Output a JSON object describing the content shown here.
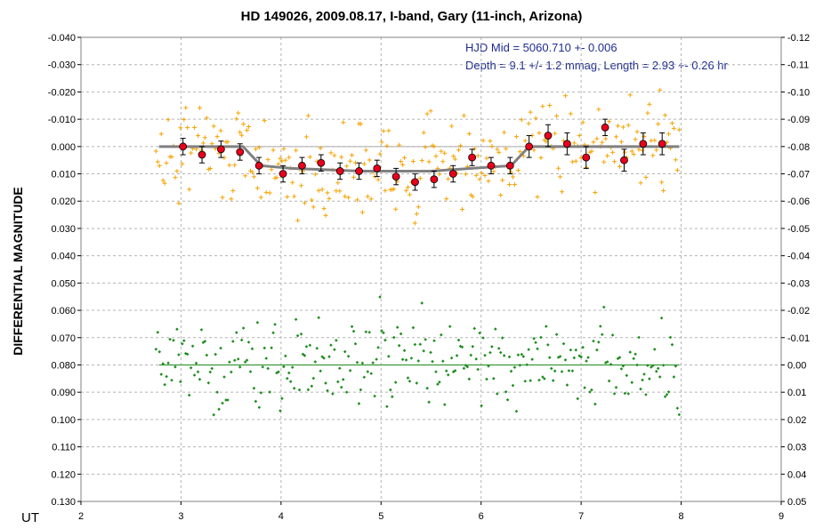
{
  "chart_data": {
    "type": "scatter",
    "title": "HD 149026, 2009.08.17, I-band, Gary (11-inch, Arizona)",
    "xlabel": "UT",
    "ylabel": "DIFFERENTIAL MAGNITUDE",
    "xlim": [
      2,
      9
    ],
    "ylim_left": [
      -0.04,
      0.13
    ],
    "ylim_right": [
      -0.12,
      0.05
    ],
    "y_inverted": true,
    "grid": true,
    "x_ticks": [
      "2",
      "3",
      "4",
      "5",
      "6",
      "7",
      "8",
      "9"
    ],
    "y_ticks_left": [
      "-0.040",
      "-0.030",
      "-0.020",
      "-0.010",
      "0.000",
      "0.010",
      "0.020",
      "0.030",
      "0.040",
      "0.050",
      "0.060",
      "0.070",
      "0.080",
      "0.090",
      "0.100",
      "0.110",
      "0.120",
      "0.130"
    ],
    "y_ticks_right": [
      "-0.12",
      "-0.11",
      "-0.10",
      "-0.09",
      "-0.08",
      "-0.07",
      "-0.06",
      "-0.05",
      "-0.04",
      "-0.03",
      "-0.02",
      "-0.01",
      "0.00",
      "0.01",
      "0.02",
      "0.03",
      "0.04",
      "0.05"
    ],
    "annotations": [
      "HJD Mid = 5060.710 +- 0.006",
      "Depth = 9.1 +/- 1.2 mmag, Length = 2.93 +- 0.26 hr"
    ],
    "colors": {
      "raw": "#f5a300",
      "binned_fill": "#e8001c",
      "model": "#808080",
      "residual": "#1e8c1e",
      "reference": "#aaaaaa",
      "annotation": "#1f2d8f"
    },
    "series": [
      {
        "type": "binned_with_errorbars",
        "x": [
          3.02,
          3.21,
          3.4,
          3.59,
          3.78,
          4.02,
          4.21,
          4.4,
          4.59,
          4.78,
          4.96,
          5.15,
          5.34,
          5.53,
          5.72,
          5.91,
          6.1,
          6.29,
          6.48,
          6.67,
          6.86,
          7.05,
          7.24,
          7.43,
          7.62,
          7.81
        ],
        "y": [
          0.0,
          0.003,
          0.001,
          0.002,
          0.007,
          0.01,
          0.007,
          0.006,
          0.009,
          0.009,
          0.008,
          0.011,
          0.013,
          0.012,
          0.01,
          0.004,
          0.007,
          0.007,
          0.0,
          -0.004,
          -0.001,
          0.004,
          -0.007,
          0.005,
          -0.001,
          -0.001
        ],
        "err": [
          0.003,
          0.003,
          0.003,
          0.003,
          0.003,
          0.003,
          0.003,
          0.003,
          0.003,
          0.003,
          0.003,
          0.003,
          0.003,
          0.003,
          0.003,
          0.003,
          0.003,
          0.003,
          0.004,
          0.004,
          0.004,
          0.004,
          0.003,
          0.004,
          0.004,
          0.004
        ]
      },
      {
        "type": "model_line",
        "x": [
          2.78,
          3.62,
          3.8,
          4.1,
          4.8,
          5.5,
          6.3,
          6.48,
          7.98
        ],
        "y": [
          0.0,
          0.0,
          0.007,
          0.008,
          0.009,
          0.009,
          0.007,
          0.0,
          0.0
        ]
      },
      {
        "type": "reference_line",
        "x": [
          2.78,
          7.98
        ],
        "y": [
          0.0,
          0.0
        ]
      },
      {
        "type": "residual_reference_line",
        "axis": "right",
        "x": [
          2.78,
          7.98
        ],
        "y": [
          0.0,
          0.0
        ]
      }
    ],
    "raw_points": {
      "description_note": "",
      "x_range": [
        2.75,
        7.98
      ],
      "count": 300,
      "scatter_sd": 0.011
    },
    "residual_points": {
      "axis": "right",
      "x_range": [
        2.75,
        7.98
      ],
      "count": 300,
      "scatter_sd": 0.011
    }
  }
}
